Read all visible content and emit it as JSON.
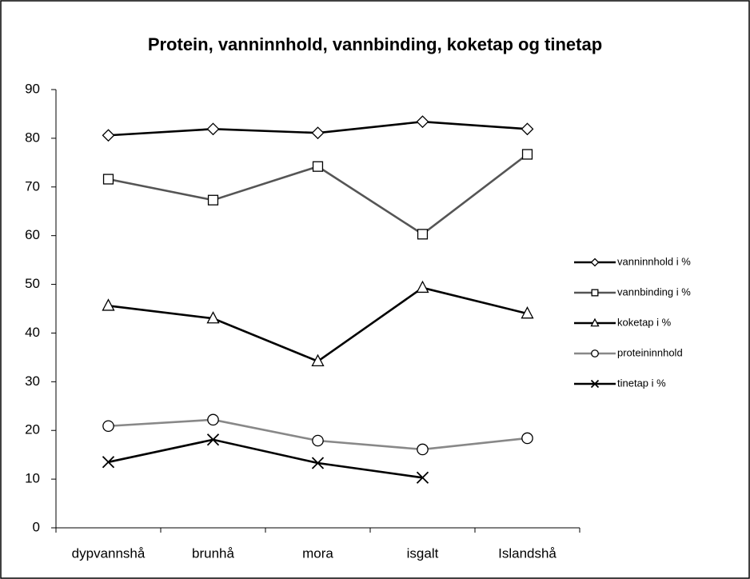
{
  "chart_data": {
    "type": "line",
    "title": "Protein, vanninnhold, vannbinding, koketap og tinetap",
    "categories": [
      "dypvannshå",
      "brunhå",
      "mora",
      "isgalt",
      "Islandshå"
    ],
    "series": [
      {
        "name": "vanninnhold i %",
        "color": "#000000",
        "marker": "diamond",
        "values": [
          80.6,
          81.9,
          81.1,
          83.4,
          81.9
        ]
      },
      {
        "name": "vannbinding i %",
        "color": "#555555",
        "marker": "square",
        "values": [
          71.6,
          67.3,
          74.2,
          60.3,
          76.7
        ]
      },
      {
        "name": "koketap i %",
        "color": "#000000",
        "marker": "triangle",
        "values": [
          45.6,
          43.0,
          34.2,
          49.3,
          44.0
        ]
      },
      {
        "name": "proteininnhold",
        "color": "#888888",
        "marker": "circle",
        "values": [
          20.9,
          22.2,
          17.9,
          16.1,
          18.4
        ]
      },
      {
        "name": "tinetap i %",
        "color": "#000000",
        "marker": "x",
        "values": [
          13.5,
          18.1,
          13.3,
          10.3,
          null
        ]
      }
    ],
    "ylim": [
      0,
      90
    ],
    "yticks": [
      0,
      10,
      20,
      30,
      40,
      50,
      60,
      70,
      80,
      90
    ],
    "grid": false,
    "legend": "right"
  }
}
